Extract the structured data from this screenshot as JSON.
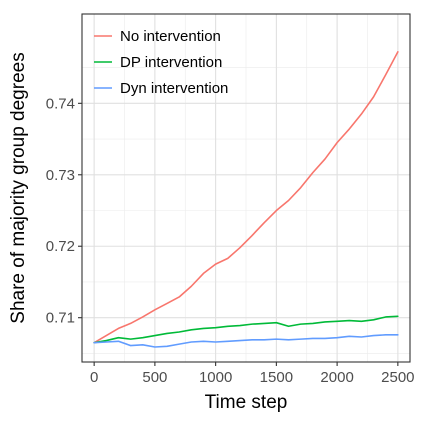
{
  "chart_data": {
    "type": "line",
    "title": "",
    "xlabel": "Time step",
    "ylabel": "Share of majority group degrees",
    "xlim": [
      -100,
      2600
    ],
    "ylim": [
      0.7038,
      0.7525
    ],
    "x_ticks": [
      0,
      500,
      1000,
      1500,
      2000,
      2500
    ],
    "x_tick_labels": [
      "0",
      "500",
      "1000",
      "1500",
      "2000",
      "2500"
    ],
    "y_ticks": [
      0.71,
      0.72,
      0.73,
      0.74
    ],
    "y_tick_labels": [
      "0.71",
      "0.72",
      "0.73",
      "0.74"
    ],
    "x_minor_ticks": [
      250,
      750,
      1250,
      1750,
      2250
    ],
    "y_minor_ticks": [
      0.705,
      0.715,
      0.725,
      0.735,
      0.745
    ],
    "grid": true,
    "legend_position": "top-left",
    "series": [
      {
        "name": "No intervention",
        "color": "#F8766D",
        "x": [
          0,
          100,
          200,
          300,
          400,
          500,
          600,
          700,
          800,
          900,
          1000,
          1100,
          1200,
          1300,
          1400,
          1500,
          1600,
          1700,
          1800,
          1900,
          2000,
          2100,
          2200,
          2300,
          2400,
          2500
        ],
        "y": [
          0.7065,
          0.7075,
          0.7085,
          0.7092,
          0.7101,
          0.7111,
          0.712,
          0.7129,
          0.7144,
          0.7162,
          0.7175,
          0.7183,
          0.7198,
          0.7215,
          0.7233,
          0.725,
          0.7264,
          0.7282,
          0.7303,
          0.7322,
          0.7345,
          0.7364,
          0.7385,
          0.7409,
          0.744,
          0.7472
        ]
      },
      {
        "name": "DP intervention",
        "color": "#00BA38",
        "x": [
          0,
          100,
          200,
          300,
          400,
          500,
          600,
          700,
          800,
          900,
          1000,
          1100,
          1200,
          1300,
          1400,
          1500,
          1600,
          1700,
          1800,
          1900,
          2000,
          2100,
          2200,
          2300,
          2400,
          2500
        ],
        "y": [
          0.7065,
          0.7068,
          0.7072,
          0.707,
          0.7072,
          0.7075,
          0.7078,
          0.708,
          0.7083,
          0.7085,
          0.7086,
          0.7088,
          0.7089,
          0.7091,
          0.7092,
          0.7093,
          0.7088,
          0.7091,
          0.7092,
          0.7094,
          0.7095,
          0.7096,
          0.7095,
          0.7097,
          0.7101,
          0.7102
        ]
      },
      {
        "name": "Dyn intervention",
        "color": "#619CFF",
        "x": [
          0,
          100,
          200,
          300,
          400,
          500,
          600,
          700,
          800,
          900,
          1000,
          1100,
          1200,
          1300,
          1400,
          1500,
          1600,
          1700,
          1800,
          1900,
          2000,
          2100,
          2200,
          2300,
          2400,
          2500
        ],
        "y": [
          0.7065,
          0.7066,
          0.7067,
          0.7061,
          0.7062,
          0.7059,
          0.706,
          0.7063,
          0.7066,
          0.7067,
          0.7066,
          0.7067,
          0.7068,
          0.7069,
          0.7069,
          0.707,
          0.7069,
          0.707,
          0.7071,
          0.7071,
          0.7072,
          0.7074,
          0.7073,
          0.7075,
          0.7076,
          0.7076
        ]
      }
    ]
  }
}
